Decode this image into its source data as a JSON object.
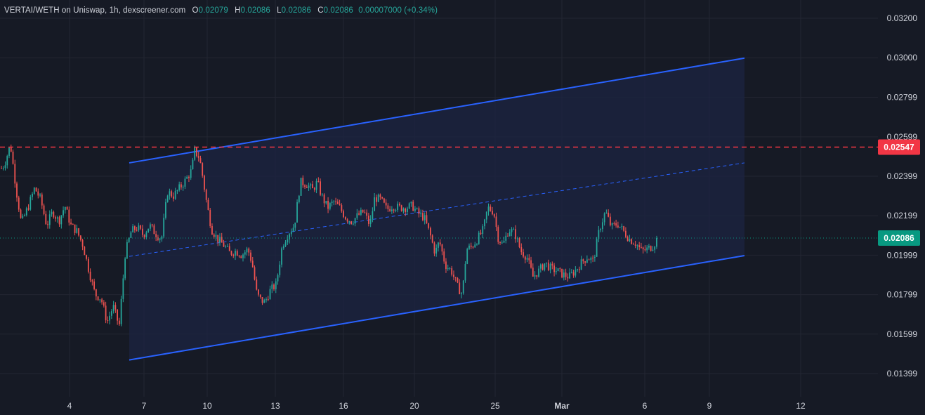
{
  "legend": {
    "symbol": "VERTAI/WETH on Uniswap, 1h, dexscreener.com",
    "o_label": "O",
    "o_value": "0.02079",
    "h_label": "H",
    "h_value": "0.02086",
    "l_label": "L",
    "l_value": "0.02086",
    "c_label": "C",
    "c_value": "0.02086",
    "change": "0.00007000 (+0.34%)"
  },
  "colors": {
    "background": "#161a25",
    "up": "#26a69a",
    "down": "#ef5350",
    "channel": "#2962ff",
    "channel_fill": "#1c2442",
    "resistance": "#f23645",
    "current_price_tag": "#089981"
  },
  "chart_data": {
    "type": "candlestick",
    "timeframe": "1h",
    "y_ticks": [
      "0.03200",
      "0.03000",
      "0.02799",
      "0.02599",
      "0.02399",
      "0.02199",
      "0.01999",
      "0.01799",
      "0.01599",
      "0.01399"
    ],
    "x_ticks": [
      "4",
      "7",
      "10",
      "13",
      "16",
      "20",
      "25",
      "Mar",
      "6",
      "9",
      "12"
    ],
    "ylim": [
      0.0128,
      0.0327
    ],
    "current_price": "0.02086",
    "resistance_price": "0.02547",
    "channel": {
      "upper": {
        "from": 0.02467,
        "to": 0.02998
      },
      "middle": {
        "from": 0.01993,
        "to": 0.02467
      },
      "lower": {
        "from": 0.01468,
        "to": 0.01997
      }
    },
    "price_path": [
      [
        0,
        0.0244
      ],
      [
        0.5,
        0.0246
      ],
      [
        1.5,
        0.0256
      ],
      [
        2.5,
        0.0232
      ],
      [
        3.3,
        0.0216
      ],
      [
        4.5,
        0.0225
      ],
      [
        5.5,
        0.0234
      ],
      [
        6.5,
        0.0228
      ],
      [
        7.5,
        0.0215
      ],
      [
        8.5,
        0.0222
      ],
      [
        9.5,
        0.0217
      ],
      [
        10.5,
        0.0225
      ],
      [
        11.5,
        0.0215
      ],
      [
        12.5,
        0.0212
      ],
      [
        13.5,
        0.0205
      ],
      [
        14.5,
        0.0192
      ],
      [
        15.5,
        0.018
      ],
      [
        16.5,
        0.0178
      ],
      [
        17.5,
        0.0166
      ],
      [
        18.5,
        0.0174
      ],
      [
        19.5,
        0.0164
      ],
      [
        20.5,
        0.0201
      ],
      [
        21.5,
        0.0212
      ],
      [
        22.5,
        0.0214
      ],
      [
        23.5,
        0.021
      ],
      [
        24.5,
        0.0215
      ],
      [
        25.5,
        0.0211
      ],
      [
        26.5,
        0.0208
      ],
      [
        27.5,
        0.0232
      ],
      [
        28.5,
        0.023
      ],
      [
        29.5,
        0.0234
      ],
      [
        30.5,
        0.0238
      ],
      [
        31.5,
        0.0243
      ],
      [
        32.0,
        0.0253
      ],
      [
        32.8,
        0.0249
      ],
      [
        33.3,
        0.024
      ],
      [
        34.0,
        0.0226
      ],
      [
        34.8,
        0.0213
      ],
      [
        35.8,
        0.0208
      ],
      [
        36.8,
        0.0205
      ],
      [
        37.8,
        0.0201
      ],
      [
        38.8,
        0.0202
      ],
      [
        39.8,
        0.02
      ],
      [
        40.8,
        0.0203
      ],
      [
        41.5,
        0.0196
      ],
      [
        42.3,
        0.018
      ],
      [
        43.0,
        0.0177
      ],
      [
        43.6,
        0.0176
      ],
      [
        44.5,
        0.0182
      ],
      [
        45.5,
        0.0185
      ],
      [
        46.5,
        0.0205
      ],
      [
        47.5,
        0.0211
      ],
      [
        48.5,
        0.0215
      ],
      [
        49.5,
        0.0237
      ],
      [
        50.5,
        0.0236
      ],
      [
        51.5,
        0.0233
      ],
      [
        52.3,
        0.0237
      ],
      [
        53.0,
        0.023
      ],
      [
        54.0,
        0.0224
      ],
      [
        55.0,
        0.0227
      ],
      [
        56.0,
        0.0224
      ],
      [
        57.0,
        0.0219
      ],
      [
        58.0,
        0.0217
      ],
      [
        59.0,
        0.022
      ],
      [
        60.0,
        0.0222
      ],
      [
        61.0,
        0.0215
      ],
      [
        61.8,
        0.0229
      ],
      [
        62.8,
        0.0228
      ],
      [
        63.8,
        0.0223
      ],
      [
        64.8,
        0.0225
      ],
      [
        65.8,
        0.0224
      ],
      [
        67.0,
        0.0224
      ],
      [
        68.0,
        0.0225
      ],
      [
        69.0,
        0.0221
      ],
      [
        70.0,
        0.0219
      ],
      [
        71.0,
        0.021
      ],
      [
        71.8,
        0.0201
      ],
      [
        72.5,
        0.0207
      ],
      [
        73.5,
        0.0195
      ],
      [
        74.5,
        0.0192
      ],
      [
        75.5,
        0.0184
      ],
      [
        76.3,
        0.018
      ],
      [
        77.0,
        0.0203
      ],
      [
        77.8,
        0.0204
      ],
      [
        78.8,
        0.0208
      ],
      [
        79.8,
        0.0213
      ],
      [
        80.5,
        0.0224
      ],
      [
        81.5,
        0.0222
      ],
      [
        82.2,
        0.0209
      ],
      [
        83.0,
        0.0205
      ],
      [
        84.0,
        0.0213
      ],
      [
        85.0,
        0.0211
      ],
      [
        86.0,
        0.0202
      ],
      [
        87.0,
        0.0199
      ],
      [
        88.0,
        0.0189
      ],
      [
        89.0,
        0.0192
      ],
      [
        90.0,
        0.0196
      ],
      [
        91.0,
        0.0193
      ],
      [
        92.0,
        0.0192
      ],
      [
        93.0,
        0.019
      ],
      [
        94.0,
        0.0189
      ],
      [
        95.0,
        0.0192
      ],
      [
        96.0,
        0.0196
      ],
      [
        97.0,
        0.0199
      ],
      [
        98.0,
        0.0197
      ],
      [
        99.0,
        0.0213
      ],
      [
        100.0,
        0.0222
      ],
      [
        101.0,
        0.0214
      ],
      [
        102.0,
        0.0216
      ],
      [
        103.0,
        0.0212
      ],
      [
        104.0,
        0.0208
      ],
      [
        105.0,
        0.0206
      ],
      [
        106.0,
        0.0202
      ],
      [
        107.0,
        0.0203
      ],
      [
        108.0,
        0.0205
      ],
      [
        108.6,
        0.02086
      ]
    ]
  }
}
